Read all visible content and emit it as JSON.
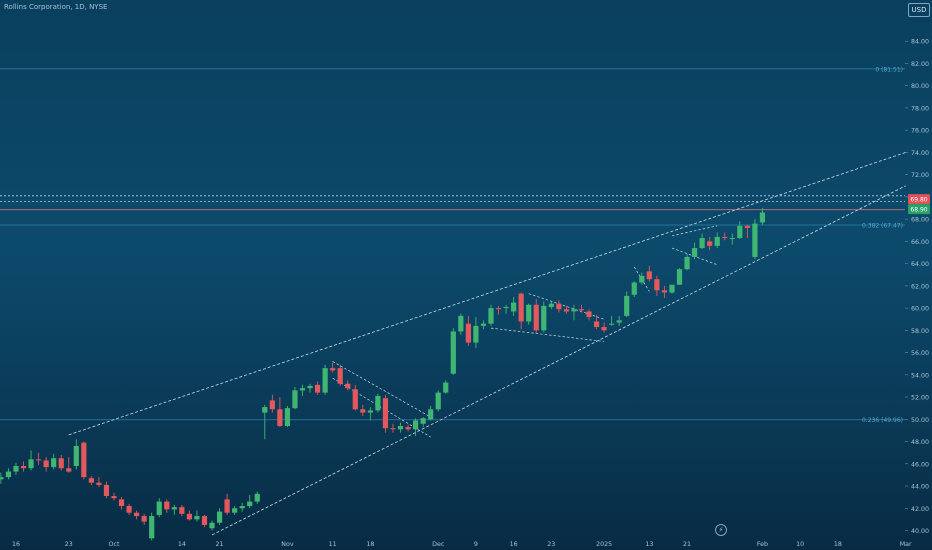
{
  "header": {
    "title": "Rollins Corporation, 1D, NYSE",
    "currency": "USD"
  },
  "chart_data": {
    "type": "candlestick",
    "title": "Rollins Corporation, 1D, NYSE",
    "price_axis": {
      "ylim": [
        39.1,
        86.2
      ],
      "ticks": [
        "84.00",
        "82.00",
        "80.00",
        "78.00",
        "76.00",
        "74.00",
        "72.00",
        "70.00",
        "68.00",
        "66.00",
        "64.00",
        "62.00",
        "60.00",
        "58.00",
        "56.00",
        "54.00",
        "52.00",
        "50.00",
        "48.00",
        "46.00",
        "44.00",
        "42.00",
        "40.00"
      ]
    },
    "time_axis": {
      "ticks": [
        {
          "label": "16",
          "i": 2
        },
        {
          "label": "23",
          "i": 9
        },
        {
          "label": "Oct",
          "i": 15
        },
        {
          "label": "14",
          "i": 24
        },
        {
          "label": "21",
          "i": 29
        },
        {
          "label": "Nov",
          "i": 38
        },
        {
          "label": "11",
          "i": 44
        },
        {
          "label": "18",
          "i": 49
        },
        {
          "label": "Dec",
          "i": 58
        },
        {
          "label": "9",
          "i": 63
        },
        {
          "label": "16",
          "i": 68
        },
        {
          "label": "23",
          "i": 73
        },
        {
          "label": "2025",
          "i": 80
        },
        {
          "label": "13",
          "i": 86
        },
        {
          "label": "21",
          "i": 91
        },
        {
          "label": "Feb",
          "i": 101
        },
        {
          "label": "10",
          "i": 106
        },
        {
          "label": "18",
          "i": 111
        },
        {
          "label": "Mar",
          "i": 120
        }
      ]
    },
    "fib_levels": [
      {
        "label": "0.236 (49.96)",
        "price": 49.96
      },
      {
        "label": "0.382 (67.47)",
        "price": 67.47
      },
      {
        "label": "0 (81.51)",
        "price": 81.51
      }
    ],
    "horizontal_lines": [
      {
        "price": 70.1,
        "style": "dotted"
      },
      {
        "price": 69.6,
        "style": "dotted"
      },
      {
        "price": 68.85,
        "style": "solid"
      }
    ],
    "price_labels": [
      "69.80",
      "68.90"
    ],
    "channel": [
      {
        "from": {
          "i": 9,
          "p": 48.6
        },
        "to": {
          "i": 120,
          "p": 74.0
        }
      },
      {
        "from": {
          "i": 28,
          "p": 39.6
        },
        "to": {
          "i": 120,
          "p": 71.0
        }
      }
    ],
    "patterns": [
      [
        {
          "i": 44,
          "p": 55.2
        },
        {
          "i": 57,
          "p": 50.2
        }
      ],
      [
        {
          "i": 44,
          "p": 53.7
        },
        {
          "i": 57,
          "p": 48.4
        }
      ],
      [
        {
          "i": 70,
          "p": 61.3
        },
        {
          "i": 80,
          "p": 59.0
        }
      ],
      [
        {
          "i": 65,
          "p": 58.2
        },
        {
          "i": 80,
          "p": 57.0
        }
      ],
      [
        {
          "i": 84,
          "p": 63.7
        },
        {
          "i": 86,
          "p": 61.5
        }
      ],
      [
        {
          "i": 89,
          "p": 66.5
        },
        {
          "i": 95,
          "p": 67.4
        }
      ],
      [
        {
          "i": 89,
          "p": 65.4
        },
        {
          "i": 95,
          "p": 63.9
        }
      ]
    ],
    "candles": [
      [
        44.6,
        45.2,
        44.2,
        44.8
      ],
      [
        44.8,
        45.6,
        44.6,
        45.3
      ],
      [
        45.3,
        46.1,
        45.0,
        45.8
      ],
      [
        45.8,
        46.2,
        45.3,
        45.6
      ],
      [
        45.6,
        47.2,
        45.4,
        46.4
      ],
      [
        46.4,
        47.0,
        45.9,
        46.3
      ],
      [
        46.3,
        46.6,
        45.3,
        45.7
      ],
      [
        45.7,
        46.9,
        45.5,
        46.5
      ],
      [
        46.5,
        46.8,
        45.4,
        45.6
      ],
      [
        45.6,
        46.6,
        45.2,
        45.3
      ],
      [
        45.8,
        48.2,
        45.5,
        47.6
      ],
      [
        47.9,
        48.0,
        44.6,
        44.8
      ],
      [
        44.7,
        44.9,
        44.1,
        44.3
      ],
      [
        44.3,
        44.8,
        43.9,
        44.1
      ],
      [
        44.1,
        44.4,
        42.9,
        43.1
      ],
      [
        43.1,
        43.4,
        42.7,
        42.9
      ],
      [
        42.8,
        43.0,
        41.9,
        42.2
      ],
      [
        42.2,
        42.4,
        41.4,
        41.6
      ],
      [
        41.6,
        41.8,
        41.0,
        41.3
      ],
      [
        41.3,
        41.5,
        40.5,
        40.8
      ],
      [
        39.3,
        41.6,
        39.1,
        41.3
      ],
      [
        41.4,
        42.9,
        41.2,
        42.6
      ],
      [
        42.6,
        42.8,
        41.6,
        41.9
      ],
      [
        41.9,
        42.3,
        41.4,
        42.1
      ],
      [
        42.1,
        42.3,
        41.3,
        41.5
      ],
      [
        41.5,
        41.8,
        40.9,
        41.0
      ],
      [
        41.0,
        41.8,
        40.8,
        41.3
      ],
      [
        41.3,
        41.4,
        40.3,
        40.5
      ],
      [
        40.2,
        40.9,
        40.0,
        40.7
      ],
      [
        40.7,
        42.0,
        40.5,
        41.7
      ],
      [
        42.8,
        43.3,
        41.4,
        41.6
      ],
      [
        41.6,
        42.2,
        41.4,
        42.0
      ],
      [
        42.0,
        42.5,
        41.7,
        42.2
      ],
      [
        42.2,
        43.2,
        42.0,
        42.6
      ],
      [
        42.6,
        43.5,
        42.4,
        43.3
      ],
      [
        50.6,
        51.3,
        48.2,
        51.1
      ],
      [
        51.7,
        52.2,
        50.6,
        50.9
      ],
      [
        50.9,
        52.0,
        49.3,
        49.4
      ],
      [
        49.4,
        51.2,
        49.3,
        51.0
      ],
      [
        51.0,
        52.9,
        50.9,
        52.6
      ],
      [
        52.6,
        53.1,
        52.1,
        52.8
      ],
      [
        52.8,
        53.2,
        52.4,
        53.0
      ],
      [
        53.1,
        53.4,
        52.2,
        52.4
      ],
      [
        52.4,
        54.9,
        52.2,
        54.6
      ],
      [
        54.6,
        55.1,
        54.2,
        54.4
      ],
      [
        54.6,
        54.9,
        53.0,
        53.2
      ],
      [
        53.2,
        53.5,
        52.6,
        52.8
      ],
      [
        52.7,
        53.1,
        50.8,
        50.9
      ],
      [
        50.9,
        51.3,
        50.3,
        50.6
      ],
      [
        50.6,
        51.1,
        49.9,
        50.8
      ],
      [
        50.8,
        52.3,
        50.6,
        52.1
      ],
      [
        51.9,
        52.2,
        48.8,
        49.2
      ],
      [
        49.2,
        49.6,
        48.8,
        49.1
      ],
      [
        49.1,
        49.7,
        48.8,
        49.4
      ],
      [
        49.3,
        49.5,
        48.9,
        49.1
      ],
      [
        49.1,
        50.1,
        48.5,
        49.9
      ],
      [
        49.6,
        50.2,
        49.3,
        50.1
      ],
      [
        50.0,
        51.2,
        49.9,
        50.9
      ],
      [
        50.9,
        52.6,
        50.7,
        52.4
      ],
      [
        52.4,
        53.5,
        52.3,
        53.3
      ],
      [
        54.1,
        58.2,
        54.0,
        57.9
      ],
      [
        57.9,
        59.5,
        57.6,
        59.3
      ],
      [
        58.6,
        59.3,
        56.6,
        56.9
      ],
      [
        56.9,
        59.2,
        56.4,
        58.4
      ],
      [
        58.4,
        58.9,
        58.1,
        58.6
      ],
      [
        58.6,
        60.3,
        58.4,
        60.0
      ],
      [
        60.0,
        60.2,
        59.4,
        59.9
      ],
      [
        60.0,
        60.3,
        59.5,
        60.1
      ],
      [
        59.7,
        61.0,
        59.3,
        60.5
      ],
      [
        61.3,
        61.4,
        58.1,
        58.8
      ],
      [
        58.8,
        60.4,
        58.5,
        60.3
      ],
      [
        60.3,
        60.8,
        57.7,
        58.0
      ],
      [
        58.0,
        60.6,
        57.8,
        60.2
      ],
      [
        60.1,
        60.6,
        59.9,
        60.4
      ],
      [
        60.4,
        60.7,
        59.6,
        59.9
      ],
      [
        59.9,
        60.2,
        59.5,
        59.7
      ],
      [
        59.7,
        60.3,
        58.9,
        59.9
      ],
      [
        59.9,
        60.3,
        59.6,
        59.8
      ],
      [
        59.7,
        59.9,
        58.9,
        59.2
      ],
      [
        58.8,
        59.4,
        58.1,
        58.3
      ],
      [
        58.3,
        58.7,
        57.8,
        58.0
      ],
      [
        58.6,
        59.3,
        58.4,
        58.6
      ],
      [
        58.7,
        59.3,
        58.4,
        58.9
      ],
      [
        59.3,
        61.5,
        59.2,
        61.1
      ],
      [
        61.2,
        62.4,
        61.0,
        62.3
      ],
      [
        62.3,
        63.2,
        62.1,
        62.9
      ],
      [
        63.3,
        63.8,
        62.4,
        62.6
      ],
      [
        62.6,
        62.9,
        61.1,
        61.6
      ],
      [
        61.6,
        62.0,
        60.9,
        61.4
      ],
      [
        61.4,
        62.1,
        61.3,
        62.1
      ],
      [
        62.1,
        63.6,
        62.1,
        63.5
      ],
      [
        63.5,
        64.9,
        63.4,
        64.6
      ],
      [
        64.6,
        65.9,
        64.4,
        65.4
      ],
      [
        65.4,
        66.7,
        65.3,
        66.3
      ],
      [
        66.0,
        66.4,
        65.2,
        65.6
      ],
      [
        65.6,
        66.8,
        65.4,
        66.4
      ],
      [
        66.4,
        66.8,
        66.1,
        66.3
      ],
      [
        66.3,
        66.7,
        65.7,
        66.3
      ],
      [
        66.3,
        67.8,
        66.2,
        67.4
      ],
      [
        67.4,
        67.5,
        66.3,
        67.2
      ],
      [
        64.6,
        68.0,
        64.4,
        67.6
      ],
      [
        67.7,
        69.0,
        67.5,
        68.6
      ]
    ]
  }
}
